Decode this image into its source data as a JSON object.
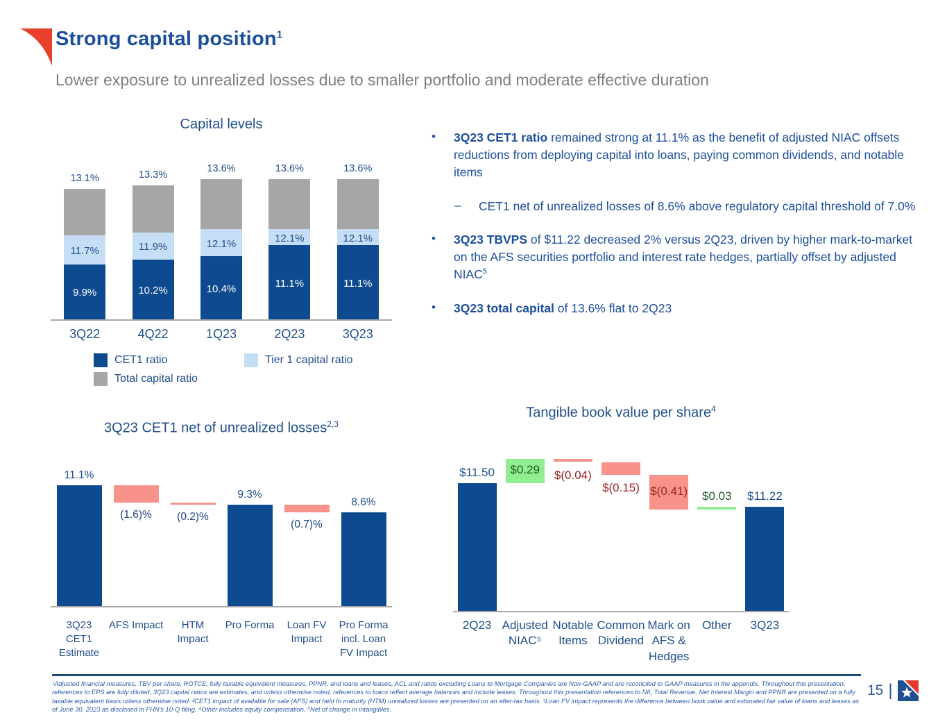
{
  "slide": {
    "title": "Strong capital position",
    "title_sup": "1",
    "subtitle": "Lower exposure to unrealized losses due to smaller portfolio and moderate effective duration",
    "page_number": "15",
    "page_divider": "|",
    "footnote": "¹Adjusted financial measures, TBV per share, ROTCE, fully taxable equivalent measures, PPNR, and loans and leases, ACL and ratios excluding Loans to Mortgage Companies are Non-GAAP and are reconciled to GAAP measures in the appendix. Throughout this presentation, references to EPS are fully diluted, 3Q23 capital ratios are estimates, and unless otherwise noted, references to loans reflect average balances and include leases. Throughout this presentation references to NII, Total Revenue, Net Interest Margin and PPNR are presented on a fully taxable equivalent basis unless otherwise noted. ²CET1 impact of available for sale (AFS) and held to maturity (HTM) unrealized losses are presented on an after-tax basis. ³Loan FV impact represents the difference between book value and estimated fair value of loans and leases as of June 30, 2023 as disclosed in FHN's 10-Q filing. ⁴Other includes equity compensation. ⁵Net of change in intangibles.",
    "brand": {
      "flag_red": "#e8402a",
      "logo_blue": "#1d4f91",
      "logo_red": "#e03a2f",
      "heading_blue": "#1b4e9c",
      "subtitle_gray": "#7f7f7f"
    }
  },
  "bullets": [
    {
      "bold": "3Q23 CET1 ratio",
      "text": " remained strong at 11.1% as the benefit of adjusted NIAC offsets reductions from deploying capital into loans, paying common dividends, and notable items",
      "sub": [
        {
          "text": "CET1 net of unrealized losses of 8.6% above regulatory capital threshold of 7.0%"
        }
      ]
    },
    {
      "bold": "3Q23 TBVPS",
      "text": " of $11.22 decreased 2% versus 2Q23, driven by higher mark-to-market on the AFS securities portfolio and interest rate hedges, partially offset by adjusted NIAC",
      "sup": "5"
    },
    {
      "bold": "3Q23 total capital",
      "text": " of 13.6% flat to 2Q23"
    }
  ],
  "chart_data": [
    {
      "id": "capital-levels",
      "type": "bar",
      "variant": "stacked-capital-ratios",
      "title": "Capital levels",
      "categories": [
        "3Q22",
        "4Q22",
        "1Q23",
        "2Q23",
        "3Q23"
      ],
      "series": [
        {
          "name": "CET1 ratio",
          "color": "#0d4a8f",
          "values": [
            9.9,
            10.2,
            10.4,
            11.1,
            11.1
          ],
          "labels": [
            "9.9%",
            "10.2%",
            "10.4%",
            "11.1%",
            "11.1%"
          ]
        },
        {
          "name": "Tier 1 capital ratio",
          "color": "#c6def5",
          "values": [
            11.7,
            11.9,
            12.1,
            12.1,
            12.1
          ],
          "labels": [
            "11.7%",
            "11.9%",
            "12.1%",
            "12.1%",
            "12.1%"
          ]
        },
        {
          "name": "Total capital ratio",
          "color": "#a6a6a6",
          "values": [
            13.1,
            13.3,
            13.6,
            13.6,
            13.6
          ],
          "labels": [
            "13.1%",
            "13.3%",
            "13.6%",
            "13.6%",
            "13.6%"
          ]
        }
      ],
      "legend_position": "bottom",
      "y_axis": "hidden"
    },
    {
      "id": "cet1-net-of-unrealized-losses",
      "type": "waterfall",
      "title": "3Q23 CET1 net of unrealized losses",
      "title_sup": "2,3",
      "unit": "%",
      "categories": [
        "3Q23\nCET1\nEstimate",
        "AFS Impact",
        "HTM\nImpact",
        "Pro Forma",
        "Loan FV\nImpact",
        "Pro Forma\nincl. Loan\nFV Impact"
      ],
      "bars": [
        {
          "kind": "total",
          "value": 11.1,
          "label": "11.1%",
          "label_pos": "above",
          "label_color": "#1f4e8c"
        },
        {
          "kind": "delta",
          "value": -1.6,
          "label": "(1.6)%",
          "label_pos": "below",
          "label_color": "#1f4283"
        },
        {
          "kind": "delta",
          "value": -0.2,
          "label": "(0.2)%",
          "label_pos": "below",
          "label_color": "#1f4283"
        },
        {
          "kind": "total",
          "value": 9.3,
          "label": "9.3%",
          "label_pos": "above",
          "label_color": "#1f4e8c"
        },
        {
          "kind": "delta",
          "value": -0.7,
          "label": "(0.7)%",
          "label_pos": "below",
          "label_color": "#1f4283"
        },
        {
          "kind": "total",
          "value": 8.6,
          "label": "8.6%",
          "label_pos": "above",
          "label_color": "#1f4e8c"
        }
      ],
      "colors": {
        "total": "#0d4a8f",
        "negative": "#f7938a",
        "positive": "#9ced9c"
      },
      "y_axis": "hidden"
    },
    {
      "id": "tangible-book-value-per-share",
      "type": "waterfall",
      "title": "Tangible book value per share",
      "title_sup": "4",
      "unit": "$",
      "categories": [
        "2Q23",
        "Adjusted\nNIAC⁵",
        "Notable\nItems",
        "Common\nDividend",
        "Mark on\nAFS &\nHedges",
        "Other",
        "3Q23"
      ],
      "bars": [
        {
          "kind": "total",
          "value": 11.5,
          "label": "$11.50",
          "label_pos": "above",
          "label_color": "#1f4e8c"
        },
        {
          "kind": "delta",
          "value": 0.29,
          "label": "$0.29",
          "label_pos": "inside",
          "label_color": "#1d5c20"
        },
        {
          "kind": "delta",
          "value": -0.04,
          "label": "$(0.04)",
          "label_pos": "below",
          "label_color": "#9c2222"
        },
        {
          "kind": "delta",
          "value": -0.15,
          "label": "$(0.15)",
          "label_pos": "below",
          "label_color": "#9c2222"
        },
        {
          "kind": "delta",
          "value": -0.41,
          "label": "$(0.41)",
          "label_pos": "inside",
          "label_color": "#9c2222"
        },
        {
          "kind": "delta",
          "value": 0.03,
          "label": "$0.03",
          "label_pos": "above",
          "label_color": "#1d5c20"
        },
        {
          "kind": "total",
          "value": 11.22,
          "label": "$11.22",
          "label_pos": "above",
          "label_color": "#1f4e8c"
        }
      ],
      "colors": {
        "total": "#0d4a8f",
        "negative": "#f7938a",
        "positive": "#90ee90"
      },
      "y_axis": "hidden"
    }
  ]
}
